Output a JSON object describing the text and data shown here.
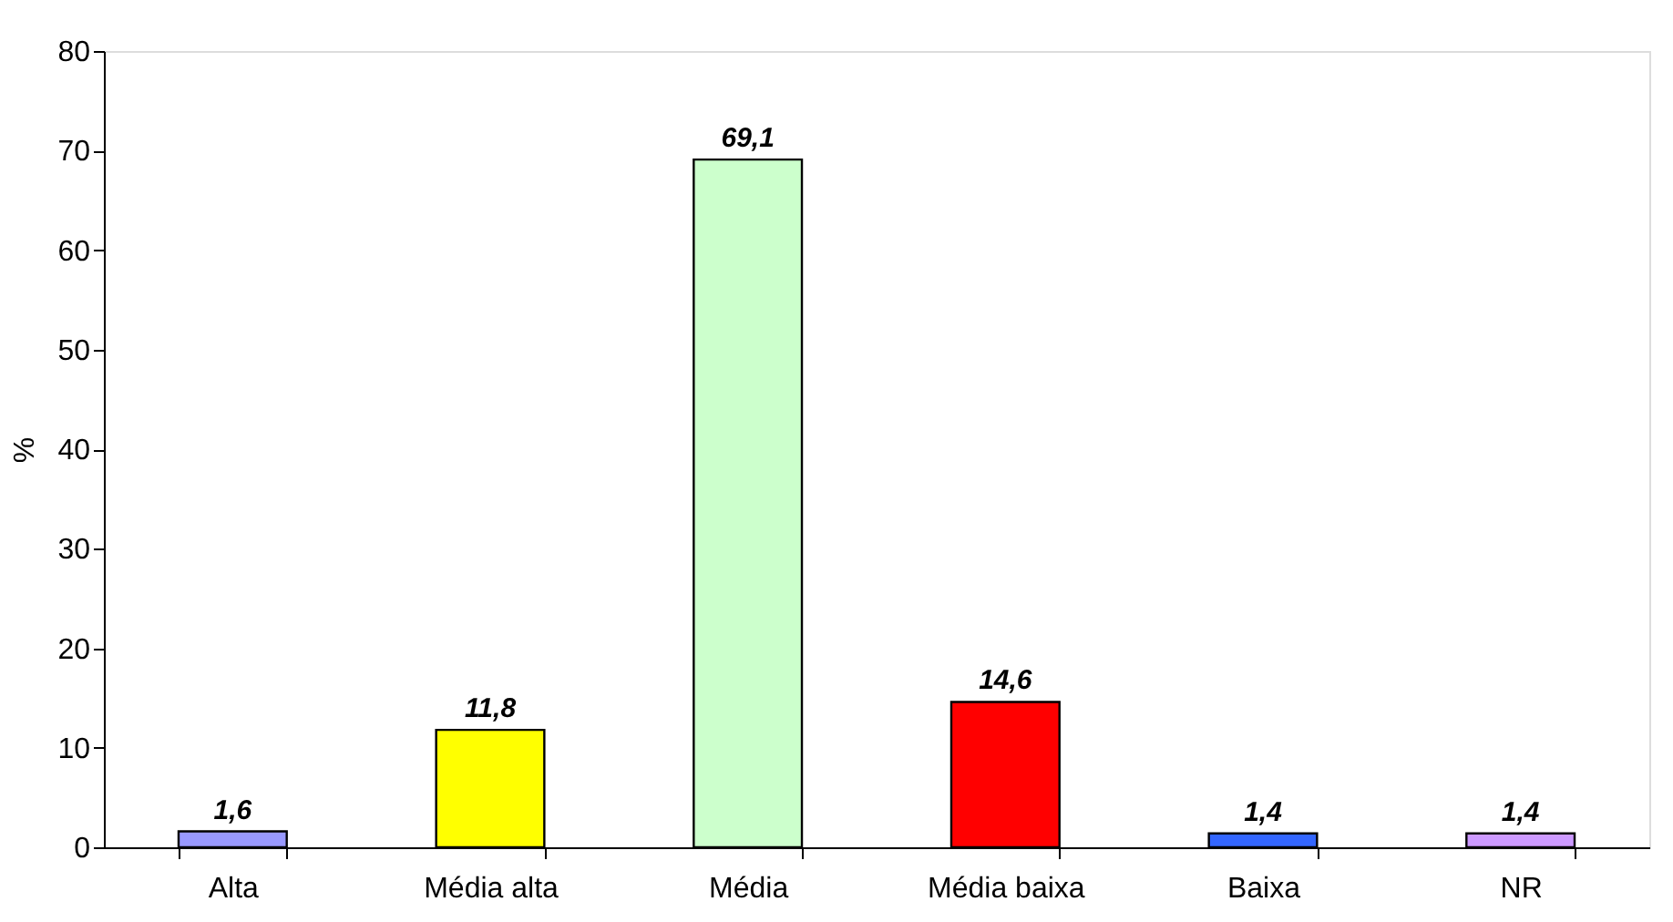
{
  "chart_data": {
    "type": "bar",
    "ylabel": "%",
    "categories": [
      "Alta",
      "Média alta",
      "Média",
      "Média baixa",
      "Baixa",
      "NR"
    ],
    "values": [
      1.6,
      11.8,
      69.1,
      14.6,
      1.4,
      1.4
    ],
    "colors": [
      "#9999ff",
      "#ffff00",
      "#ccffcc",
      "#ff0000",
      "#3366ff",
      "#cc99ff"
    ],
    "value_labels": [
      "1,6",
      "11,8",
      "69,1",
      "14,6",
      "1,4",
      "1,4"
    ],
    "ylim": [
      0,
      80
    ],
    "yticks": [
      0,
      10,
      20,
      30,
      40,
      50,
      60,
      70,
      80
    ],
    "grid": false
  }
}
